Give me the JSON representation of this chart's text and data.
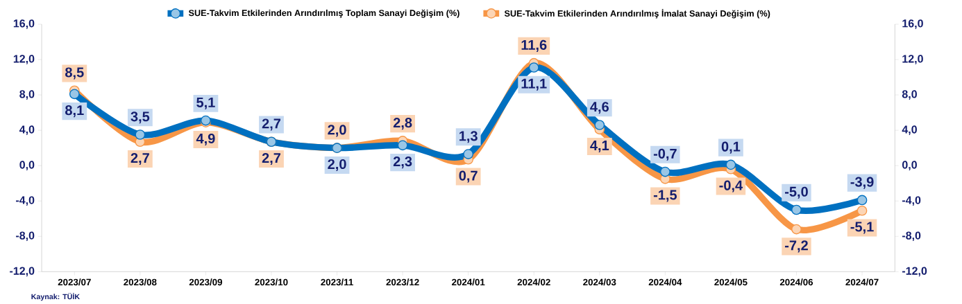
{
  "chart_data": {
    "type": "line",
    "categories": [
      "2023/07",
      "2023/08",
      "2023/09",
      "2023/10",
      "2023/11",
      "2023/12",
      "2024/01",
      "2024/02",
      "2024/03",
      "2024/04",
      "2024/05",
      "2024/06",
      "2024/07"
    ],
    "series": [
      {
        "name": "SUE-Takvim Etkilerinden Arındırılmış Toplam Sanayi Değişim (%)",
        "color": "#0070c0",
        "values": [
          8.1,
          3.5,
          5.1,
          2.7,
          2.0,
          2.3,
          1.3,
          11.1,
          4.6,
          -0.7,
          0.1,
          -5.0,
          -3.9
        ],
        "value_labels": [
          "8,1",
          "3,5",
          "5,1",
          "2,7",
          "2,0",
          "2,3",
          "1,3",
          "11,1",
          "4,6",
          "-0,7",
          "0,1",
          "-5,0",
          "-3,9"
        ]
      },
      {
        "name": "SUE-Takvim Etkilerinden Arındırılmış İmalat Sanayi Değişim (%)",
        "color": "#f79646",
        "values": [
          8.5,
          2.7,
          4.9,
          2.7,
          2.0,
          2.8,
          0.7,
          11.6,
          4.1,
          -1.5,
          -0.4,
          -7.2,
          -5.1
        ],
        "value_labels": [
          "8,5",
          "2,7",
          "4,9",
          "2,7",
          "2,0",
          "2,8",
          "0,7",
          "11,6",
          "4,1",
          "-1,5",
          "-0,4",
          "-7,2",
          "-5,1"
        ]
      }
    ],
    "ylim": [
      -12,
      16
    ],
    "yticks": [
      {
        "value": -12,
        "label": "-12,0"
      },
      {
        "value": -8,
        "label": "-8,0"
      },
      {
        "value": -4,
        "label": "-4,0"
      },
      {
        "value": 0,
        "label": "0,0"
      },
      {
        "value": 4,
        "label": "4,0"
      },
      {
        "value": 8,
        "label": "8,0"
      },
      {
        "value": 12,
        "label": "12,0"
      },
      {
        "value": 16,
        "label": "16,0"
      }
    ],
    "y2lim": [
      -12,
      16
    ],
    "y2ticks": [
      {
        "value": -12,
        "label": "-12,0"
      },
      {
        "value": -8,
        "label": "-8,0"
      },
      {
        "value": -4,
        "label": "-4,0"
      },
      {
        "value": 0,
        "label": "0,0"
      },
      {
        "value": 4,
        "label": "4,0"
      },
      {
        "value": 8,
        "label": "8,0"
      },
      {
        "value": 12,
        "label": "12,0"
      },
      {
        "value": 16,
        "label": "16,0"
      }
    ],
    "legend": "top",
    "marker": "circle",
    "grid": false,
    "annotations": [
      "Kaynak: TÜİK"
    ]
  }
}
